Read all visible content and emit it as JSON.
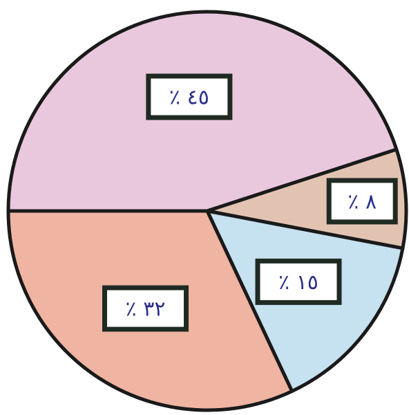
{
  "chart_data": {
    "type": "pie",
    "categories": [
      null,
      null,
      null,
      null
    ],
    "values": [
      45,
      8,
      15,
      32
    ],
    "value_labels": [
      "٤٥ ٪",
      "٨ ٪",
      "١٥ ٪",
      "٣٢ ٪"
    ],
    "colors": [
      "#e9c8dd",
      "#e2c3b2",
      "#c6e1ef",
      "#efb4a2"
    ]
  }
}
